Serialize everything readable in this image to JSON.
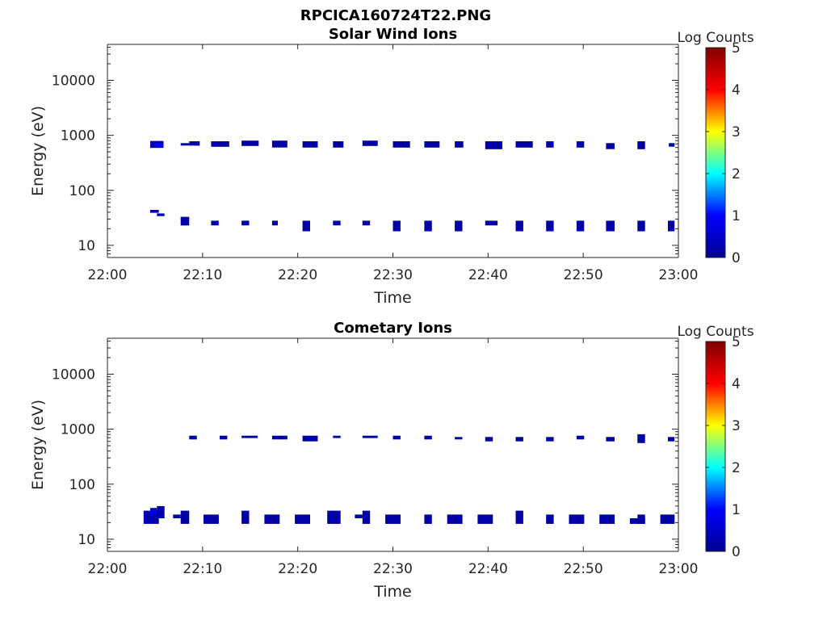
{
  "figure": {
    "title": "RPCICA160724T22.PNG"
  },
  "colormap": {
    "name": "jet",
    "stops": [
      "#00008f",
      "#0000ff",
      "#00ffff",
      "#ffff00",
      "#ff0000",
      "#800000"
    ]
  },
  "chart_data": [
    {
      "type": "heatmap",
      "title": "Solar Wind Ions",
      "xlabel": "Time",
      "ylabel": "Energy (eV)",
      "x_ticks": [
        "22:00",
        "22:10",
        "22:20",
        "22:30",
        "22:40",
        "22:50",
        "23:00"
      ],
      "y_scale": "log",
      "ylim": [
        6,
        45000
      ],
      "y_ticks": [
        "10",
        "100",
        "1000",
        "10000"
      ],
      "colorbar": {
        "label": "Log Counts",
        "range": [
          0,
          5
        ],
        "ticks": [
          "0",
          "1",
          "2",
          "3",
          "4",
          "5"
        ]
      },
      "cells": [
        {
          "t0": 4.5,
          "t1": 5.9,
          "e0": 590,
          "e1": 790,
          "v": 0.3
        },
        {
          "t0": 5.0,
          "t1": 5.9,
          "e0": 620,
          "e1": 720,
          "v": 1.0
        },
        {
          "t0": 7.7,
          "t1": 8.6,
          "e0": 650,
          "e1": 720,
          "v": 0.2
        },
        {
          "t0": 8.6,
          "t1": 9.7,
          "e0": 650,
          "e1": 780,
          "v": 0.2
        },
        {
          "t0": 10.9,
          "t1": 12.8,
          "e0": 620,
          "e1": 780,
          "v": 0.2
        },
        {
          "t0": 14.1,
          "t1": 15.9,
          "e0": 640,
          "e1": 800,
          "v": 0.2
        },
        {
          "t0": 17.3,
          "t1": 18.9,
          "e0": 600,
          "e1": 800,
          "v": 0.2
        },
        {
          "t0": 20.5,
          "t1": 22.1,
          "e0": 600,
          "e1": 780,
          "v": 0.2
        },
        {
          "t0": 23.7,
          "t1": 24.8,
          "e0": 600,
          "e1": 780,
          "v": 0.2
        },
        {
          "t0": 26.8,
          "t1": 28.4,
          "e0": 640,
          "e1": 800,
          "v": 0.2
        },
        {
          "t0": 30.0,
          "t1": 31.8,
          "e0": 600,
          "e1": 780,
          "v": 0.2
        },
        {
          "t0": 33.3,
          "t1": 34.9,
          "e0": 600,
          "e1": 780,
          "v": 0.2
        },
        {
          "t0": 36.5,
          "t1": 37.4,
          "e0": 600,
          "e1": 780,
          "v": 0.2
        },
        {
          "t0": 39.7,
          "t1": 41.5,
          "e0": 560,
          "e1": 780,
          "v": 0.2
        },
        {
          "t0": 42.9,
          "t1": 44.7,
          "e0": 600,
          "e1": 780,
          "v": 0.2
        },
        {
          "t0": 46.1,
          "t1": 46.9,
          "e0": 600,
          "e1": 780,
          "v": 0.2
        },
        {
          "t0": 49.3,
          "t1": 50.1,
          "e0": 600,
          "e1": 780,
          "v": 0.2
        },
        {
          "t0": 52.4,
          "t1": 53.3,
          "e0": 560,
          "e1": 720,
          "v": 0.2
        },
        {
          "t0": 55.7,
          "t1": 56.5,
          "e0": 560,
          "e1": 780,
          "v": 0.2
        },
        {
          "t0": 59.0,
          "t1": 59.6,
          "e0": 620,
          "e1": 720,
          "v": 0.2
        },
        {
          "t0": 4.5,
          "t1": 5.4,
          "e0": 39,
          "e1": 44,
          "v": 0.3
        },
        {
          "t0": 5.2,
          "t1": 6.0,
          "e0": 34,
          "e1": 38,
          "v": 0.3
        },
        {
          "t0": 7.7,
          "t1": 8.6,
          "e0": 23,
          "e1": 33,
          "v": 0.2
        },
        {
          "t0": 10.9,
          "t1": 11.7,
          "e0": 23,
          "e1": 28,
          "v": 0.2
        },
        {
          "t0": 14.1,
          "t1": 14.9,
          "e0": 23,
          "e1": 28,
          "v": 0.2
        },
        {
          "t0": 17.3,
          "t1": 17.9,
          "e0": 23,
          "e1": 28,
          "v": 0.2
        },
        {
          "t0": 20.5,
          "t1": 21.3,
          "e0": 18,
          "e1": 28,
          "v": 0.2
        },
        {
          "t0": 23.7,
          "t1": 24.5,
          "e0": 23,
          "e1": 28,
          "v": 0.2
        },
        {
          "t0": 26.8,
          "t1": 27.6,
          "e0": 23,
          "e1": 28,
          "v": 0.2
        },
        {
          "t0": 30.0,
          "t1": 30.8,
          "e0": 18,
          "e1": 28,
          "v": 0.2
        },
        {
          "t0": 33.3,
          "t1": 34.1,
          "e0": 18,
          "e1": 28,
          "v": 0.2
        },
        {
          "t0": 36.5,
          "t1": 37.3,
          "e0": 18,
          "e1": 28,
          "v": 0.2
        },
        {
          "t0": 39.7,
          "t1": 41.0,
          "e0": 23,
          "e1": 28,
          "v": 0.2
        },
        {
          "t0": 42.9,
          "t1": 43.7,
          "e0": 18,
          "e1": 28,
          "v": 0.2
        },
        {
          "t0": 46.1,
          "t1": 46.9,
          "e0": 18,
          "e1": 28,
          "v": 0.2
        },
        {
          "t0": 49.3,
          "t1": 50.1,
          "e0": 18,
          "e1": 28,
          "v": 0.2
        },
        {
          "t0": 52.4,
          "t1": 53.3,
          "e0": 18,
          "e1": 28,
          "v": 0.2
        },
        {
          "t0": 55.7,
          "t1": 56.5,
          "e0": 18,
          "e1": 28,
          "v": 0.2
        },
        {
          "t0": 58.9,
          "t1": 59.6,
          "e0": 18,
          "e1": 28,
          "v": 0.2
        }
      ]
    },
    {
      "type": "heatmap",
      "title": "Cometary Ions",
      "xlabel": "Time",
      "ylabel": "Energy (eV)",
      "x_ticks": [
        "22:00",
        "22:10",
        "22:20",
        "22:30",
        "22:40",
        "22:50",
        "23:00"
      ],
      "y_scale": "log",
      "ylim": [
        6,
        45000
      ],
      "y_ticks": [
        "10",
        "100",
        "1000",
        "10000"
      ],
      "colorbar": {
        "label": "Log Counts",
        "range": [
          0,
          5
        ],
        "ticks": [
          "0",
          "1",
          "2",
          "3",
          "4",
          "5"
        ]
      },
      "cells": [
        {
          "t0": 8.6,
          "t1": 9.4,
          "e0": 650,
          "e1": 760,
          "v": 0.2
        },
        {
          "t0": 11.8,
          "t1": 12.6,
          "e0": 650,
          "e1": 760,
          "v": 0.2
        },
        {
          "t0": 14.1,
          "t1": 15.8,
          "e0": 690,
          "e1": 760,
          "v": 0.2
        },
        {
          "t0": 17.3,
          "t1": 18.9,
          "e0": 650,
          "e1": 760,
          "v": 0.2
        },
        {
          "t0": 20.5,
          "t1": 22.1,
          "e0": 600,
          "e1": 760,
          "v": 0.2
        },
        {
          "t0": 23.7,
          "t1": 24.5,
          "e0": 690,
          "e1": 760,
          "v": 0.2
        },
        {
          "t0": 26.8,
          "t1": 28.4,
          "e0": 690,
          "e1": 760,
          "v": 0.2
        },
        {
          "t0": 30.0,
          "t1": 30.8,
          "e0": 650,
          "e1": 760,
          "v": 0.2
        },
        {
          "t0": 33.3,
          "t1": 34.1,
          "e0": 650,
          "e1": 760,
          "v": 0.2
        },
        {
          "t0": 36.5,
          "t1": 37.3,
          "e0": 650,
          "e1": 720,
          "v": 0.2
        },
        {
          "t0": 39.7,
          "t1": 40.5,
          "e0": 600,
          "e1": 720,
          "v": 0.2
        },
        {
          "t0": 42.9,
          "t1": 43.7,
          "e0": 600,
          "e1": 720,
          "v": 0.2
        },
        {
          "t0": 46.1,
          "t1": 46.9,
          "e0": 600,
          "e1": 720,
          "v": 0.2
        },
        {
          "t0": 49.3,
          "t1": 50.1,
          "e0": 650,
          "e1": 760,
          "v": 0.2
        },
        {
          "t0": 52.4,
          "t1": 53.3,
          "e0": 600,
          "e1": 720,
          "v": 0.2
        },
        {
          "t0": 55.7,
          "t1": 56.5,
          "e0": 560,
          "e1": 810,
          "v": 0.2
        },
        {
          "t0": 58.9,
          "t1": 59.6,
          "e0": 600,
          "e1": 720,
          "v": 0.2
        },
        {
          "t0": 3.8,
          "t1": 5.4,
          "e0": 19,
          "e1": 33,
          "v": 0.3
        },
        {
          "t0": 4.5,
          "t1": 5.2,
          "e0": 27,
          "e1": 37,
          "v": 0.7
        },
        {
          "t0": 5.2,
          "t1": 6.0,
          "e0": 24,
          "e1": 40,
          "v": 0.3
        },
        {
          "t0": 6.9,
          "t1": 7.7,
          "e0": 24,
          "e1": 28,
          "v": 0.2
        },
        {
          "t0": 7.7,
          "t1": 8.6,
          "e0": 19,
          "e1": 33,
          "v": 0.2
        },
        {
          "t0": 10.1,
          "t1": 11.7,
          "e0": 19,
          "e1": 28,
          "v": 0.2
        },
        {
          "t0": 14.1,
          "t1": 14.9,
          "e0": 19,
          "e1": 33,
          "v": 0.2
        },
        {
          "t0": 16.5,
          "t1": 18.1,
          "e0": 19,
          "e1": 28,
          "v": 0.2
        },
        {
          "t0": 19.7,
          "t1": 21.3,
          "e0": 19,
          "e1": 28,
          "v": 0.2
        },
        {
          "t0": 23.1,
          "t1": 24.5,
          "e0": 19,
          "e1": 33,
          "v": 0.2
        },
        {
          "t0": 26.0,
          "t1": 26.8,
          "e0": 24,
          "e1": 28,
          "v": 0.2
        },
        {
          "t0": 26.8,
          "t1": 27.6,
          "e0": 19,
          "e1": 33,
          "v": 0.2
        },
        {
          "t0": 29.2,
          "t1": 30.8,
          "e0": 19,
          "e1": 28,
          "v": 0.2
        },
        {
          "t0": 33.3,
          "t1": 34.1,
          "e0": 19,
          "e1": 28,
          "v": 0.2
        },
        {
          "t0": 35.7,
          "t1": 37.3,
          "e0": 19,
          "e1": 28,
          "v": 0.2
        },
        {
          "t0": 38.9,
          "t1": 40.5,
          "e0": 19,
          "e1": 28,
          "v": 0.2
        },
        {
          "t0": 42.9,
          "t1": 43.7,
          "e0": 19,
          "e1": 33,
          "v": 0.2
        },
        {
          "t0": 46.1,
          "t1": 46.9,
          "e0": 19,
          "e1": 28,
          "v": 0.2
        },
        {
          "t0": 48.5,
          "t1": 50.1,
          "e0": 19,
          "e1": 28,
          "v": 0.2
        },
        {
          "t0": 51.7,
          "t1": 53.3,
          "e0": 19,
          "e1": 28,
          "v": 0.2
        },
        {
          "t0": 54.9,
          "t1": 56.5,
          "e0": 19,
          "e1": 24,
          "v": 0.2
        },
        {
          "t0": 55.7,
          "t1": 56.5,
          "e0": 19,
          "e1": 28,
          "v": 0.2
        },
        {
          "t0": 58.1,
          "t1": 59.6,
          "e0": 19,
          "e1": 28,
          "v": 0.2
        }
      ]
    }
  ]
}
